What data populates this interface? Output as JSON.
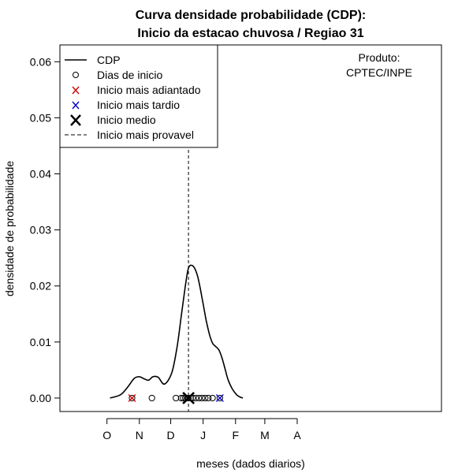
{
  "chart_data": {
    "type": "line",
    "title_lines": [
      "Curva densidade probabilidade (CDP):",
      "Inicio da estacao chuvosa / Regiao 31"
    ],
    "xlabel": "meses (dados diarios)",
    "ylabel": "densidade de probabilidade",
    "x_unit": "days from 1 October",
    "xlim": [
      -45,
      320
    ],
    "ylim": [
      -0.0024,
      0.063
    ],
    "y_ticks": [
      0.0,
      0.01,
      0.02,
      0.03,
      0.04,
      0.05,
      0.06
    ],
    "y_tick_labels": [
      "0.00",
      "0.01",
      "0.02",
      "0.03",
      "0.04",
      "0.05",
      "0.06"
    ],
    "month_ticks": [
      {
        "label": "O",
        "day": 0
      },
      {
        "label": "N",
        "day": 31
      },
      {
        "label": "D",
        "day": 61
      },
      {
        "label": "J",
        "day": 92
      },
      {
        "label": "F",
        "day": 123
      },
      {
        "label": "M",
        "day": 151
      },
      {
        "label": "A",
        "day": 182
      }
    ],
    "cdp_curve": {
      "name": "CDP",
      "x": [
        3,
        13,
        20,
        26,
        31,
        36,
        40,
        44,
        49,
        55,
        62,
        67,
        71,
        75,
        78,
        82,
        86,
        89,
        92,
        95,
        98,
        101,
        104,
        107,
        110,
        113,
        116,
        120,
        124,
        127,
        130
      ],
      "y": [
        0.0,
        0.0006,
        0.002,
        0.0035,
        0.0038,
        0.0034,
        0.0032,
        0.0038,
        0.0037,
        0.0025,
        0.0045,
        0.009,
        0.0145,
        0.02,
        0.0232,
        0.0236,
        0.0222,
        0.0198,
        0.0168,
        0.0138,
        0.0114,
        0.0098,
        0.0092,
        0.0086,
        0.0072,
        0.0052,
        0.0032,
        0.0016,
        0.0006,
        0.0002,
        0.0
      ]
    },
    "dias_de_inicio": [
      24,
      43,
      66,
      71,
      73,
      75,
      77,
      78,
      80,
      82,
      85,
      88,
      91,
      94,
      97,
      101,
      108
    ],
    "inicio_mais_adiantado": {
      "x": 24,
      "y": 0.0,
      "color": "#d50000"
    },
    "inicio_mais_tardio": {
      "x": 108,
      "y": 0.0,
      "color": "#0000cc"
    },
    "inicio_medio": {
      "x": 78,
      "y": 0.0,
      "color": "#000000"
    },
    "inicio_mais_provavel": {
      "x": 78
    },
    "legend": {
      "position": "top-left",
      "entries": [
        {
          "label": "CDP",
          "symbol": "line"
        },
        {
          "label": "Dias de inicio",
          "symbol": "circle"
        },
        {
          "label": "Inicio mais adiantado",
          "symbol": "x",
          "color": "#d50000"
        },
        {
          "label": "Inicio mais tardio",
          "symbol": "x",
          "color": "#0000cc"
        },
        {
          "label": "Inicio medio",
          "symbol": "big-x",
          "color": "#000000"
        },
        {
          "label": "Inicio mais provavel",
          "symbol": "dashed"
        }
      ]
    },
    "annotation_lines": [
      "Produto:",
      "CPTEC/INPE"
    ]
  }
}
